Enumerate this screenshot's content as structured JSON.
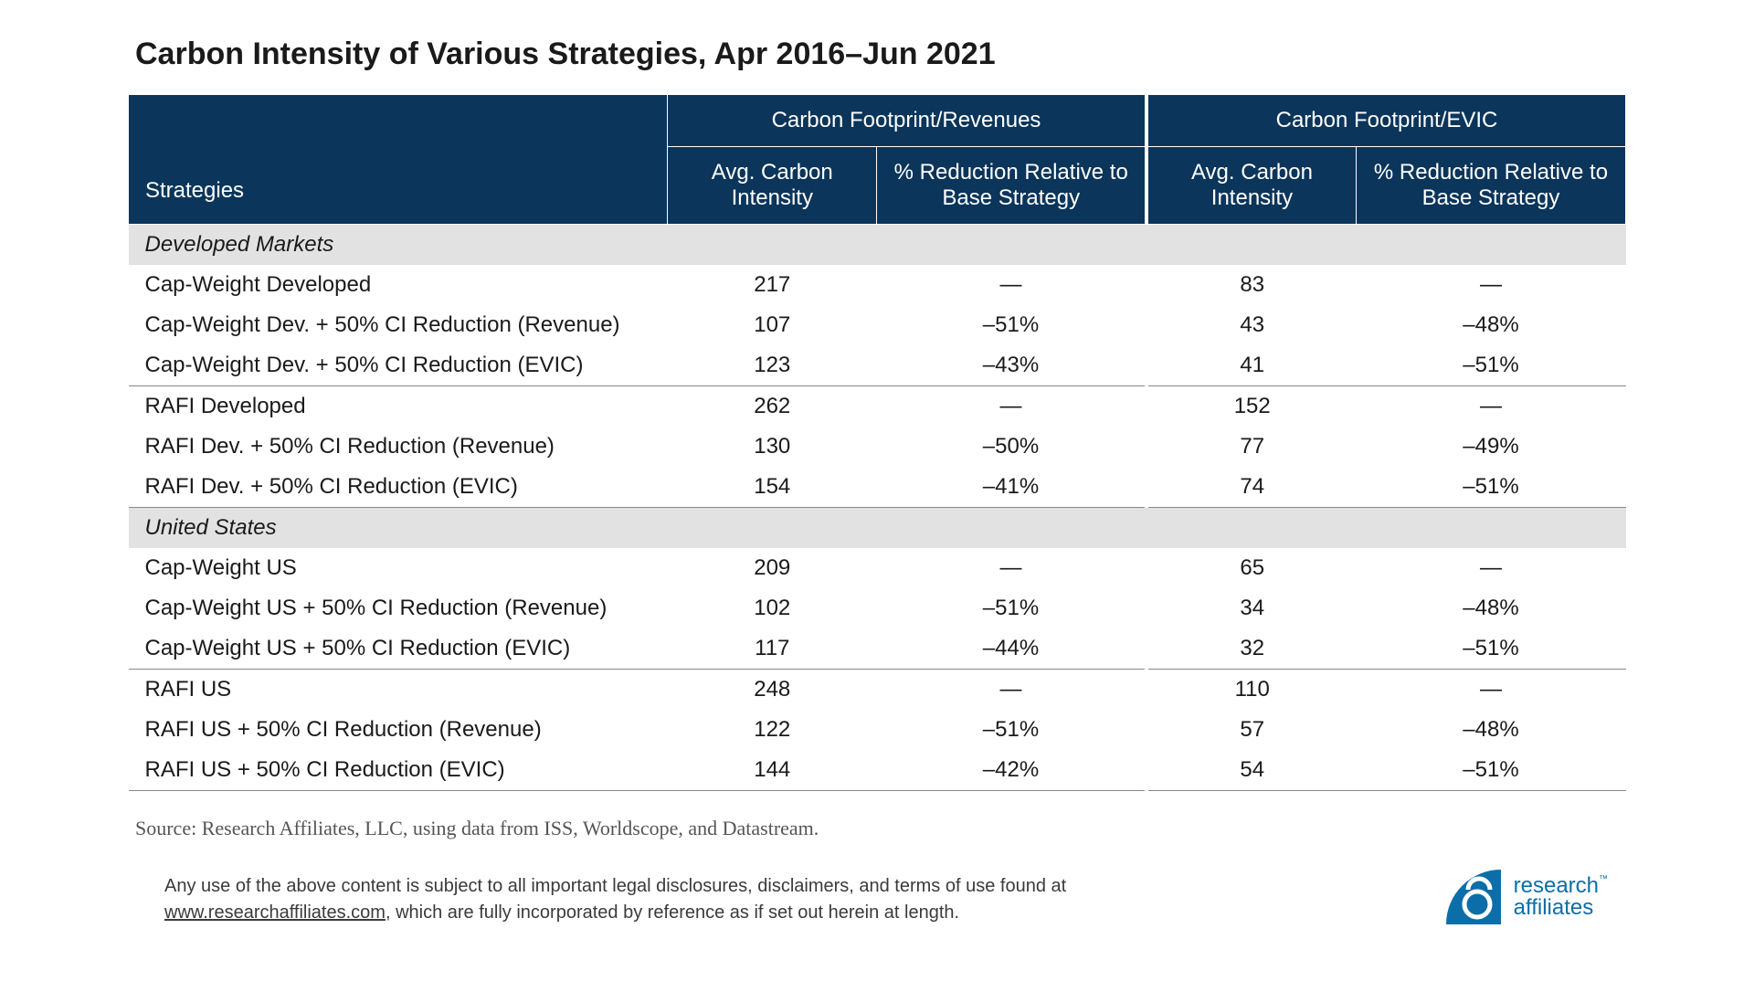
{
  "title": "Carbon Intensity of Various Strategies, Apr 2016–Jun 2021",
  "colors": {
    "header_bg": "#0b355a",
    "header_text": "#ffffff",
    "section_bg": "#e2e2e2",
    "body_text": "#1a1a1a",
    "rule": "#888888",
    "logo": "#0b6ea8"
  },
  "column_widths_pct": [
    36,
    14,
    18,
    14,
    18
  ],
  "headers": {
    "strategies_label": "Strategies",
    "group1": "Carbon Footprint/Revenues",
    "group2": "Carbon Footprint/EVIC",
    "sub1": "Avg. Carbon Intensity",
    "sub2": "% Reduction Relative to Base Strategy",
    "sub3": "Avg. Carbon Intensity",
    "sub4": "% Reduction Relative to Base Strategy"
  },
  "sections": [
    {
      "name": "Developed Markets",
      "groups": [
        {
          "rows": [
            {
              "strategy": "Cap-Weight Developed",
              "v1": "217",
              "v2": "—",
              "v3": "83",
              "v4": "—"
            },
            {
              "strategy": "Cap-Weight Dev. + 50% CI Reduction (Revenue)",
              "v1": "107",
              "v2": "–51%",
              "v3": "43",
              "v4": "–48%"
            },
            {
              "strategy": "Cap-Weight Dev. + 50% CI  Reduction (EVIC)",
              "v1": "123",
              "v2": "–43%",
              "v3": "41",
              "v4": "–51%"
            }
          ]
        },
        {
          "rows": [
            {
              "strategy": "RAFI Developed",
              "v1": "262",
              "v2": "—",
              "v3": "152",
              "v4": "—"
            },
            {
              "strategy": "RAFI Dev. + 50% CI Reduction (Revenue)",
              "v1": "130",
              "v2": "–50%",
              "v3": "77",
              "v4": "–49%"
            },
            {
              "strategy": "RAFI Dev. + 50% CI Reduction (EVIC)",
              "v1": "154",
              "v2": "–41%",
              "v3": "74",
              "v4": "–51%"
            }
          ]
        }
      ]
    },
    {
      "name": "United States",
      "groups": [
        {
          "rows": [
            {
              "strategy": "Cap-Weight US",
              "v1": "209",
              "v2": "—",
              "v3": "65",
              "v4": "—"
            },
            {
              "strategy": "Cap-Weight US + 50% CI Reduction (Revenue)",
              "v1": "102",
              "v2": "–51%",
              "v3": "34",
              "v4": "–48%"
            },
            {
              "strategy": "Cap-Weight US + 50% CI  Reduction (EVIC)",
              "v1": "117",
              "v2": "–44%",
              "v3": "32",
              "v4": "–51%"
            }
          ]
        },
        {
          "rows": [
            {
              "strategy": "RAFI US",
              "v1": "248",
              "v2": "—",
              "v3": "110",
              "v4": "—"
            },
            {
              "strategy": "RAFI US + 50% CI Reduction (Revenue)",
              "v1": "122",
              "v2": "–51%",
              "v3": "57",
              "v4": "–48%"
            },
            {
              "strategy": "RAFI US + 50% CI Reduction (EVIC)",
              "v1": "144",
              "v2": "–42%",
              "v3": "54",
              "v4": "–51%"
            }
          ]
        }
      ]
    }
  ],
  "source": "Source: Research Affiliates, LLC, using data from ISS, Worldscope, and Datastream.",
  "legal": {
    "text1": "Any use of the above content is subject to all important legal disclosures, disclaimers, and terms of use found at ",
    "link": "www.researchaffiliates.com",
    "text2": ", which are fully incorporated by reference as if set out herein at length."
  },
  "logo": {
    "line1": "research",
    "line2": "affiliates",
    "tm": "™"
  }
}
